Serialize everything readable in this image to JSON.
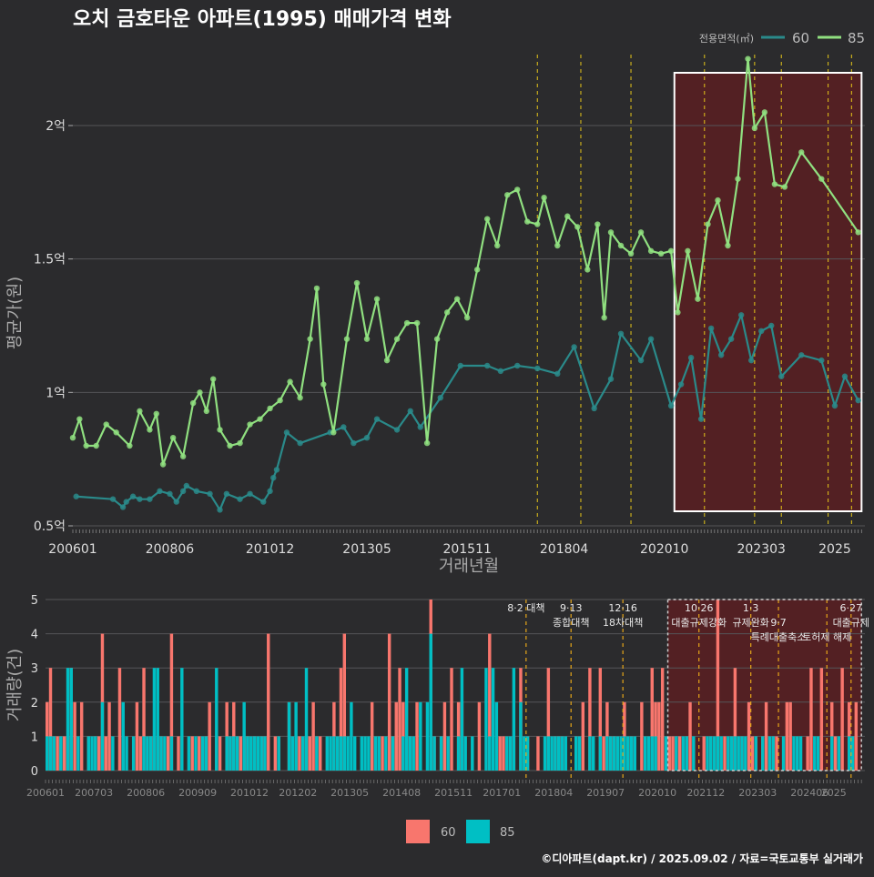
{
  "title": "오치 금호타운 아파트(1995) 매매가격 변화",
  "credit": "©디아파트(dapt.kr) / 2025.09.02 / 자료=국토교통부 실거래가",
  "colors": {
    "background": "#2b2b2d",
    "line60": "#2a8a8a",
    "line85": "#90e080",
    "bar60": "#f8766d",
    "bar85": "#00bfc4",
    "policy_line": "#e6c619",
    "highlight_fill": "#5a1f22",
    "highlight_border": "#ffffff"
  },
  "chart_data": [
    {
      "type": "line",
      "title": "오치 금호타운 아파트(1995) 매매가격 변화",
      "xlabel": "거래년월",
      "ylabel": "평균가(원)",
      "x_ticks": [
        "200601",
        "200806",
        "201012",
        "201305",
        "201511",
        "201804",
        "202010",
        "202303",
        "2025"
      ],
      "y_ticks": [
        "0.5억",
        "1억",
        "1.5억",
        "2억"
      ],
      "y_values_unit": "억",
      "ylim": [
        0.5,
        2.3
      ],
      "legend_title": "전용면적(㎡)",
      "legend_position": "top-right",
      "highlight_period": [
        "2021-01",
        "2025-09"
      ],
      "policy_dates": [
        "2017-08",
        "2018-09",
        "2019-12",
        "2021-10",
        "2023-01",
        "2023-09",
        "2024-11",
        "2025-06"
      ],
      "series": [
        {
          "name": "60",
          "points": [
            [
              "2006-02",
              0.61
            ],
            [
              "2007-01",
              0.6
            ],
            [
              "2007-04",
              0.57
            ],
            [
              "2007-05",
              0.59
            ],
            [
              "2007-07",
              0.61
            ],
            [
              "2007-09",
              0.6
            ],
            [
              "2007-12",
              0.6
            ],
            [
              "2008-03",
              0.63
            ],
            [
              "2008-06",
              0.62
            ],
            [
              "2008-08",
              0.59
            ],
            [
              "2008-10",
              0.63
            ],
            [
              "2008-11",
              0.65
            ],
            [
              "2009-02",
              0.63
            ],
            [
              "2009-06",
              0.62
            ],
            [
              "2009-09",
              0.56
            ],
            [
              "2009-11",
              0.62
            ],
            [
              "2010-03",
              0.6
            ],
            [
              "2010-06",
              0.62
            ],
            [
              "2010-10",
              0.59
            ],
            [
              "2010-12",
              0.63
            ],
            [
              "2011-01",
              0.68
            ],
            [
              "2011-02",
              0.71
            ],
            [
              "2011-05",
              0.85
            ],
            [
              "2011-09",
              0.81
            ],
            [
              "2012-06",
              0.85
            ],
            [
              "2012-10",
              0.87
            ],
            [
              "2013-01",
              0.81
            ],
            [
              "2013-05",
              0.83
            ],
            [
              "2013-08",
              0.9
            ],
            [
              "2014-02",
              0.86
            ],
            [
              "2014-06",
              0.93
            ],
            [
              "2014-09",
              0.87
            ],
            [
              "2015-03",
              0.98
            ],
            [
              "2015-09",
              1.1
            ],
            [
              "2016-05",
              1.1
            ],
            [
              "2016-09",
              1.08
            ],
            [
              "2017-02",
              1.1
            ],
            [
              "2017-08",
              1.09
            ],
            [
              "2018-02",
              1.07
            ],
            [
              "2018-07",
              1.17
            ],
            [
              "2019-01",
              0.94
            ],
            [
              "2019-06",
              1.05
            ],
            [
              "2019-09",
              1.22
            ],
            [
              "2020-03",
              1.12
            ],
            [
              "2020-06",
              1.2
            ],
            [
              "2020-12",
              0.95
            ],
            [
              "2021-03",
              1.03
            ],
            [
              "2021-06",
              1.13
            ],
            [
              "2021-09",
              0.9
            ],
            [
              "2021-12",
              1.24
            ],
            [
              "2022-03",
              1.14
            ],
            [
              "2022-06",
              1.2
            ],
            [
              "2022-09",
              1.29
            ],
            [
              "2022-12",
              1.12
            ],
            [
              "2023-03",
              1.23
            ],
            [
              "2023-06",
              1.25
            ],
            [
              "2023-09",
              1.06
            ],
            [
              "2024-03",
              1.14
            ],
            [
              "2024-09",
              1.12
            ],
            [
              "2025-01",
              0.95
            ],
            [
              "2025-04",
              1.06
            ],
            [
              "2025-08",
              0.97
            ]
          ]
        },
        {
          "name": "85",
          "points": [
            [
              "2006-01",
              0.83
            ],
            [
              "2006-03",
              0.9
            ],
            [
              "2006-05",
              0.8
            ],
            [
              "2006-08",
              0.8
            ],
            [
              "2006-11",
              0.88
            ],
            [
              "2007-02",
              0.85
            ],
            [
              "2007-06",
              0.8
            ],
            [
              "2007-09",
              0.93
            ],
            [
              "2007-12",
              0.86
            ],
            [
              "2008-02",
              0.92
            ],
            [
              "2008-04",
              0.73
            ],
            [
              "2008-07",
              0.83
            ],
            [
              "2008-10",
              0.76
            ],
            [
              "2009-01",
              0.96
            ],
            [
              "2009-03",
              1.0
            ],
            [
              "2009-05",
              0.93
            ],
            [
              "2009-07",
              1.05
            ],
            [
              "2009-09",
              0.86
            ],
            [
              "2009-12",
              0.8
            ],
            [
              "2010-03",
              0.81
            ],
            [
              "2010-06",
              0.88
            ],
            [
              "2010-09",
              0.9
            ],
            [
              "2010-12",
              0.94
            ],
            [
              "2011-03",
              0.97
            ],
            [
              "2011-06",
              1.04
            ],
            [
              "2011-09",
              0.98
            ],
            [
              "2011-12",
              1.2
            ],
            [
              "2012-02",
              1.39
            ],
            [
              "2012-04",
              1.03
            ],
            [
              "2012-07",
              0.85
            ],
            [
              "2012-11",
              1.2
            ],
            [
              "2013-02",
              1.41
            ],
            [
              "2013-05",
              1.2
            ],
            [
              "2013-08",
              1.35
            ],
            [
              "2013-11",
              1.12
            ],
            [
              "2014-02",
              1.2
            ],
            [
              "2014-05",
              1.26
            ],
            [
              "2014-08",
              1.26
            ],
            [
              "2014-11",
              0.81
            ],
            [
              "2015-02",
              1.2
            ],
            [
              "2015-05",
              1.3
            ],
            [
              "2015-08",
              1.35
            ],
            [
              "2015-11",
              1.28
            ],
            [
              "2016-02",
              1.46
            ],
            [
              "2016-05",
              1.65
            ],
            [
              "2016-08",
              1.55
            ],
            [
              "2016-11",
              1.74
            ],
            [
              "2017-02",
              1.76
            ],
            [
              "2017-05",
              1.64
            ],
            [
              "2017-08",
              1.63
            ],
            [
              "2017-10",
              1.73
            ],
            [
              "2018-02",
              1.55
            ],
            [
              "2018-05",
              1.66
            ],
            [
              "2018-08",
              1.62
            ],
            [
              "2018-11",
              1.46
            ],
            [
              "2019-02",
              1.63
            ],
            [
              "2019-04",
              1.28
            ],
            [
              "2019-06",
              1.6
            ],
            [
              "2019-09",
              1.55
            ],
            [
              "2019-12",
              1.52
            ],
            [
              "2020-03",
              1.6
            ],
            [
              "2020-06",
              1.53
            ],
            [
              "2020-09",
              1.52
            ],
            [
              "2020-12",
              1.53
            ],
            [
              "2021-02",
              1.3
            ],
            [
              "2021-05",
              1.53
            ],
            [
              "2021-08",
              1.35
            ],
            [
              "2021-11",
              1.63
            ],
            [
              "2022-02",
              1.72
            ],
            [
              "2022-05",
              1.55
            ],
            [
              "2022-08",
              1.8
            ],
            [
              "2022-11",
              2.25
            ],
            [
              "2023-01",
              1.99
            ],
            [
              "2023-04",
              2.05
            ],
            [
              "2023-07",
              1.78
            ],
            [
              "2023-10",
              1.77
            ],
            [
              "2024-03",
              1.9
            ],
            [
              "2024-09",
              1.8
            ],
            [
              "2025-08",
              1.6
            ]
          ]
        }
      ]
    },
    {
      "type": "bar",
      "ylabel": "거래량(건)",
      "ylim": [
        0,
        5
      ],
      "y_ticks": [
        "0",
        "1",
        "2",
        "3",
        "4",
        "5"
      ],
      "x_ticks": [
        "200601",
        "200703",
        "200806",
        "200909",
        "201012",
        "201202",
        "201305",
        "201408",
        "201511",
        "201701",
        "201804",
        "201907",
        "202010",
        "202112",
        "202303",
        "202406",
        "2025"
      ],
      "legend_position": "bottom",
      "highlight_period": [
        "2021-01",
        "2025-09"
      ],
      "annotations": [
        {
          "date": "2017-08",
          "lines": [
            "8·2 대책"
          ]
        },
        {
          "date": "2018-09",
          "lines": [
            "9·13",
            "종합대책"
          ]
        },
        {
          "date": "2019-12",
          "lines": [
            "12·16",
            "18차대책"
          ]
        },
        {
          "date": "2021-10",
          "lines": [
            "10·26",
            "대출규제강화"
          ]
        },
        {
          "date": "2023-01",
          "lines": [
            "1·3",
            "규제완화"
          ]
        },
        {
          "date": "2023-09",
          "lines": [
            "",
            "9·7",
            "특례대출축소"
          ]
        },
        {
          "date": "2024-11",
          "lines": [
            "",
            "",
            "토허제 해제"
          ]
        },
        {
          "date": "2025-06",
          "lines": [
            "6·27",
            "대출규제"
          ]
        }
      ],
      "series": [
        {
          "name": "60",
          "peaks": [
            [
              "2007-05",
              4
            ],
            [
              "2009-01",
              4
            ],
            [
              "2011-05",
              4
            ],
            [
              "2013-03",
              4
            ],
            [
              "2014-04",
              4
            ],
            [
              "2015-04",
              5
            ],
            [
              "2016-09",
              4
            ],
            [
              "2022-03",
              5
            ],
            [
              "2022-08",
              3
            ],
            [
              "2024-06",
              3
            ]
          ]
        },
        {
          "name": "85",
          "peaks": [
            [
              "2006-07",
              3
            ],
            [
              "2008-08",
              3
            ],
            [
              "2010-02",
              3
            ],
            [
              "2012-04",
              3
            ],
            [
              "2014-09",
              3
            ],
            [
              "2015-04",
              4
            ],
            [
              "2016-10",
              3
            ],
            [
              "2018-02",
              1
            ],
            [
              "2020-06",
              1
            ],
            [
              "2022-06",
              1
            ]
          ]
        }
      ]
    }
  ]
}
